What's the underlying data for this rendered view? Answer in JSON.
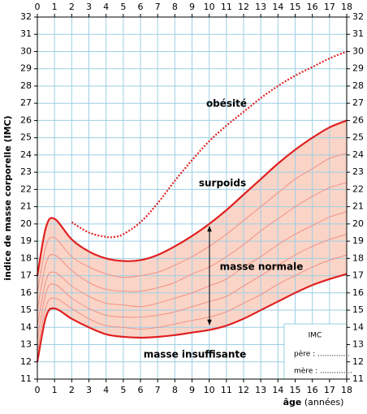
{
  "chart_data": {
    "type": "line",
    "ylabel": "indice de masse corporelle (IMC)",
    "xlabel": {
      "main": "âge",
      "unit": "(années)"
    },
    "xlim": [
      0,
      18
    ],
    "xticks": [
      0,
      1,
      2,
      3,
      4,
      5,
      6,
      7,
      8,
      9,
      10,
      11,
      12,
      13,
      14,
      15,
      16,
      17,
      18
    ],
    "ylim": [
      11,
      32
    ],
    "yticks": [
      11,
      12,
      13,
      14,
      15,
      16,
      17,
      18,
      19,
      20,
      21,
      22,
      23,
      24,
      25,
      26,
      27,
      28,
      29,
      30,
      31,
      32
    ],
    "grid": true,
    "grid_color": "#9ccfe6",
    "band_color": "#fad4c6",
    "x": [
      0,
      0.5,
      1,
      2,
      3,
      4,
      5,
      6,
      7,
      8,
      9,
      10,
      11,
      12,
      13,
      14,
      15,
      16,
      17,
      18
    ],
    "series": [
      {
        "style": "thick",
        "color": "#e02020",
        "values": [
          12.0,
          14.6,
          15.1,
          14.5,
          14.0,
          13.6,
          13.45,
          13.4,
          13.45,
          13.55,
          13.7,
          13.85,
          14.1,
          14.5,
          15.0,
          15.5,
          16.0,
          16.45,
          16.8,
          17.1
        ]
      },
      {
        "style": "thin",
        "color": "#f08a80",
        "values": [
          12.6,
          15.2,
          15.7,
          15.1,
          14.5,
          14.1,
          14.0,
          13.9,
          14.0,
          14.2,
          14.4,
          14.6,
          14.9,
          15.4,
          15.9,
          16.5,
          17.0,
          17.5,
          17.9,
          18.2
        ]
      },
      {
        "style": "thin",
        "color": "#f08a80",
        "values": [
          13.3,
          16.0,
          16.5,
          15.7,
          15.1,
          14.7,
          14.6,
          14.6,
          14.7,
          14.9,
          15.2,
          15.5,
          15.8,
          16.4,
          17.0,
          17.6,
          18.2,
          18.7,
          19.1,
          19.4
        ]
      },
      {
        "style": "thin",
        "color": "#f08a80",
        "values": [
          14.1,
          16.7,
          17.2,
          16.4,
          15.8,
          15.4,
          15.3,
          15.2,
          15.4,
          15.7,
          16.0,
          16.4,
          16.8,
          17.5,
          18.1,
          18.8,
          19.4,
          19.9,
          20.4,
          20.7
        ]
      },
      {
        "style": "thin",
        "color": "#f08a80",
        "values": [
          15.0,
          17.7,
          18.2,
          17.3,
          16.6,
          16.2,
          16.1,
          16.1,
          16.3,
          16.6,
          17.1,
          17.5,
          18.1,
          18.8,
          19.6,
          20.3,
          21.0,
          21.6,
          22.1,
          22.4
        ]
      },
      {
        "style": "thin",
        "color": "#f08a80",
        "values": [
          16.0,
          18.7,
          19.2,
          18.1,
          17.5,
          17.1,
          16.9,
          17.0,
          17.2,
          17.6,
          18.1,
          18.7,
          19.4,
          20.2,
          21.0,
          21.8,
          22.6,
          23.2,
          23.8,
          24.1
        ]
      },
      {
        "style": "thick",
        "color": "#e02020",
        "values": [
          17.0,
          19.8,
          20.3,
          19.1,
          18.4,
          18.0,
          17.85,
          17.9,
          18.2,
          18.7,
          19.3,
          20.0,
          20.8,
          21.7,
          22.6,
          23.5,
          24.3,
          25.0,
          25.6,
          26.0
        ]
      },
      {
        "style": "dotted",
        "color": "#e02020",
        "x": [
          2,
          3,
          4,
          4.5,
          5,
          6,
          7,
          8,
          9,
          10,
          11,
          12,
          13,
          14,
          15,
          16,
          17,
          18
        ],
        "values": [
          20.1,
          19.5,
          19.25,
          19.25,
          19.4,
          20.1,
          21.2,
          22.5,
          23.7,
          24.8,
          25.7,
          26.5,
          27.3,
          28.0,
          28.6,
          29.1,
          29.6,
          30.0
        ]
      }
    ],
    "annotations": [
      "obésité",
      "surpoids",
      "masse normale",
      "masse insuffisante"
    ],
    "note": {
      "title": "IMC",
      "lines": [
        "père : ..............",
        "mère : .............."
      ]
    }
  }
}
